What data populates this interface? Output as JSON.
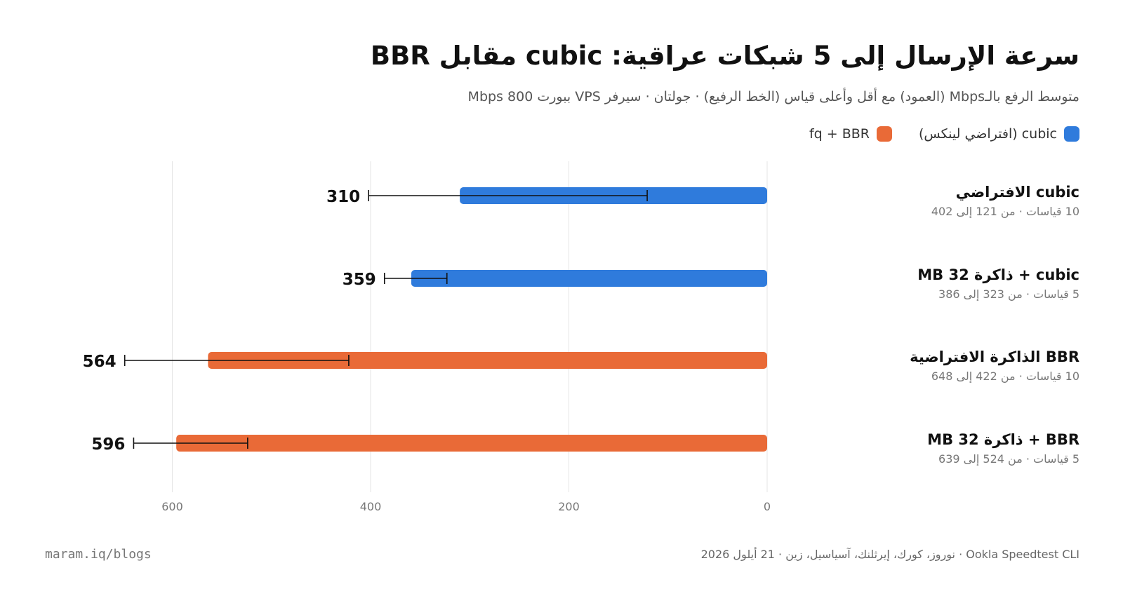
{
  "title": "سرعة الإرسال إلى 5 شبكات عراقية: cubic مقابل BBR",
  "subtitle": "متوسط الرفع بالـMbps (العمود) مع أقل وأعلى قياس (الخط الرفيع) · جولتان · سيرفر VPS ببورت 800 Mbps",
  "legend": [
    {
      "label": "cubic (افتراضي لينكس)",
      "color": "#2f7bdc"
    },
    {
      "label": "fq + BBR",
      "color": "#e96a37"
    }
  ],
  "rows": [
    {
      "name": "cubic الافتراضي",
      "note": "10 قياسات · من 121 إلى 402"
    },
    {
      "name": "cubic + ذاكرة 32 MB",
      "note": "5 قياسات · من 323 إلى 386"
    },
    {
      "name": "BBR الذاكرة الافتراضية",
      "note": "10 قياسات · من 422 إلى 648"
    },
    {
      "name": "BBR + ذاكرة 32 MB",
      "note": "5 قياسات · من 524 إلى 639"
    }
  ],
  "footer": {
    "left": "maram.iq/blogs",
    "right": "Ookla Speedtest CLI · نوروز، كورك، إيرثلنك، آسياسيل، زين · 21 أيلول 2026"
  },
  "chart_data": {
    "type": "bar",
    "orientation": "horizontal",
    "x_direction": "right-to-left",
    "categories": [
      "cubic الافتراضي",
      "cubic + ذاكرة 32 MB",
      "BBR الذاكرة الافتراضية",
      "BBR + ذاكرة 32 MB"
    ],
    "values": [
      310,
      359,
      564,
      596
    ],
    "min": [
      121,
      323,
      422,
      524
    ],
    "max": [
      402,
      386,
      648,
      639
    ],
    "group": [
      "cubic",
      "cubic",
      "bbr",
      "bbr"
    ],
    "colors": {
      "cubic": "#2f7bdc",
      "bbr": "#e96a37"
    },
    "xticks": [
      0,
      200,
      400,
      600
    ],
    "xlim": [
      0,
      700
    ],
    "grid": true
  }
}
